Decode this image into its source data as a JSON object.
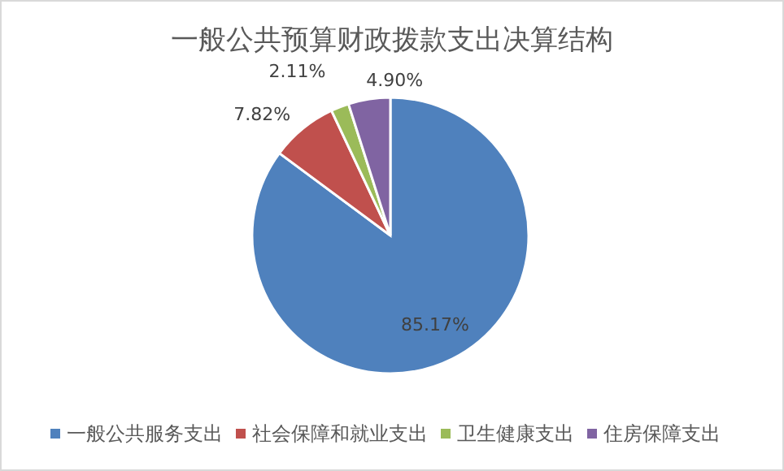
{
  "chart_data": {
    "type": "pie",
    "title": "一般公共预算财政拨款支出决算结构",
    "categories": [
      "一般公共服务支出",
      "社会保障和就业支出",
      "卫生健康支出",
      "住房保障支出"
    ],
    "values": [
      85.17,
      7.82,
      2.11,
      4.9
    ],
    "colors": [
      "#4f81bd",
      "#c0504d",
      "#9bbb59",
      "#8064a2"
    ],
    "value_labels": [
      "85.17%",
      "7.82%",
      "2.11%",
      "4.90%"
    ],
    "legend": "bottom"
  }
}
